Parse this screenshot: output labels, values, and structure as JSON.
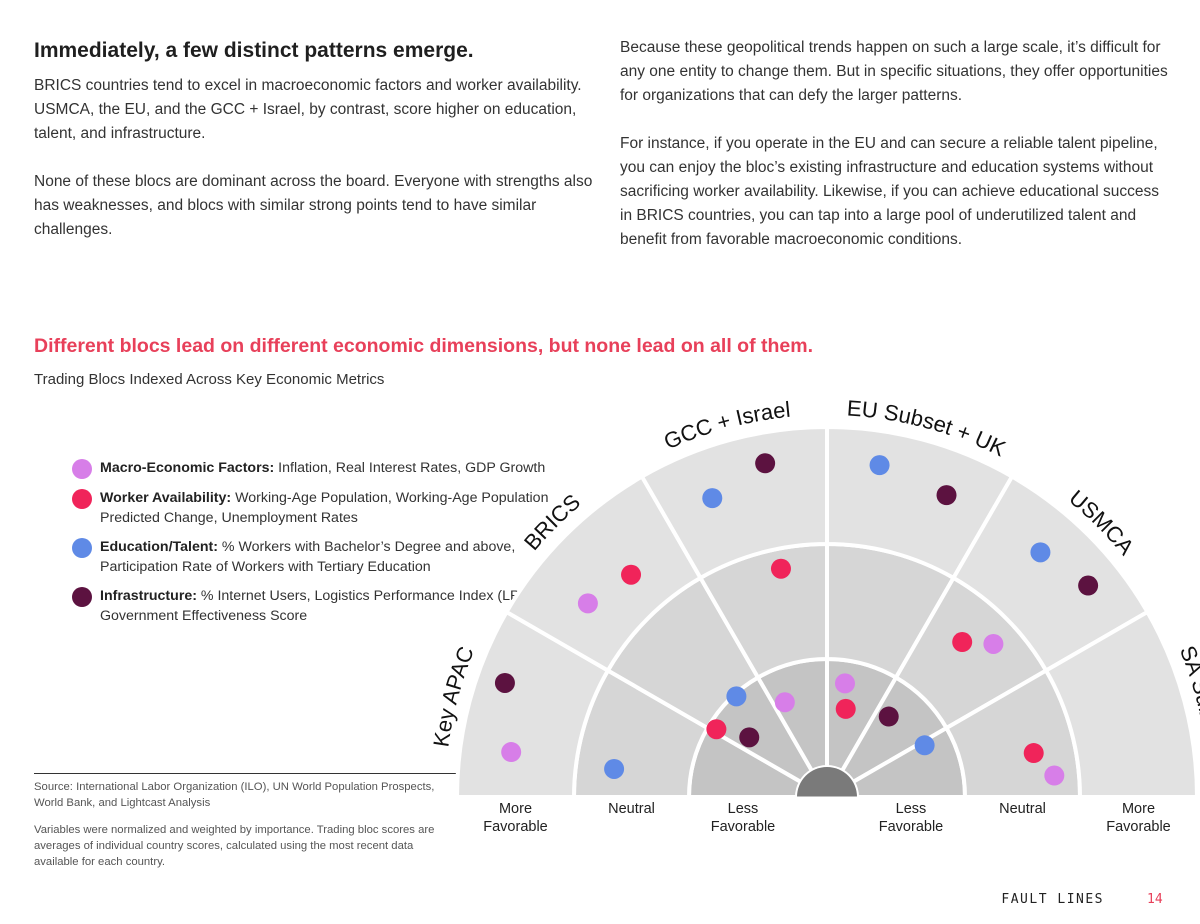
{
  "intro": {
    "heading": "Immediately, a few distinct patterns emerge.",
    "left_paragraphs": [
      "BRICS countries tend to excel in macroeconomic factors and worker availability. USMCA, the EU, and the GCC + Israel, by contrast, score higher on education, talent, and infrastructure.",
      "None of these blocs are dominant across the board. Everyone with strengths also has weaknesses, and blocs with similar strong points tend to have similar challenges."
    ],
    "right_paragraphs": [
      "Because these geopolitical trends happen on such a large scale, it’s difficult for any one entity to change them. But in specific situations, they offer opportunities for organizations that can defy the larger patterns.",
      "For instance, if you operate in the EU and can secure a reliable talent pipeline, you can enjoy the bloc’s existing infrastructure and education systems without sacrificing worker availability. Likewise, if you can achieve educational success in BRICS countries, you can tap into a large pool of underutilized talent and benefit from favorable macroeconomic conditions."
    ]
  },
  "chart_section": {
    "headline": "Different blocs lead on different economic dimensions, but none lead on all of them.",
    "subtitle": "Trading Blocs Indexed Across Key Economic Metrics"
  },
  "legend": [
    {
      "key": "Macro-Economic Factors:",
      "desc": " Inflation, Real Interest Rates, GDP Growth",
      "color": "#d77ee8"
    },
    {
      "key": "Worker Availability:",
      "desc": " Working-Age Population, Working-Age Population Predicted Change, Unemployment Rates",
      "color": "#f0245a"
    },
    {
      "key": "Education/Talent:",
      "desc": " % Workers with Bachelor’s Degree and above, Participation Rate of Workers with Tertiary Education",
      "color": "#5f8ae6"
    },
    {
      "key": "Infrastructure:",
      "desc": " % Internet Users, Logistics Performance Index (LPI), Government Effectiveness Score",
      "color": "#5c1240"
    }
  ],
  "notes": {
    "source": "Source: International Labor Organization (ILO), UN World Population Prospects, World Bank, and Lightcast Analysis",
    "method": "Variables were normalized and weighted by importance. Trading bloc scores are averages of individual country scores, calculated using the most recent data available for each country."
  },
  "chart_data": {
    "type": "radial-dot",
    "title": "Trading Blocs Indexed Across Key Economic Metrics",
    "blocs": [
      "Key APAC",
      "BRICS",
      "GCC + Israel",
      "EU Subset + UK",
      "USMCA",
      "SA Subset"
    ],
    "scale_levels": [
      "Less Favorable",
      "Neutral",
      "More Favorable"
    ],
    "axis_labels_left": [
      "More\nFavorable",
      "Neutral",
      "Less\nFavorable"
    ],
    "axis_labels_right": [
      "Less\nFavorable",
      "Neutral",
      "More\nFavorable"
    ],
    "axis_labels_left_lines": [
      [
        "More",
        "Favorable"
      ],
      [
        "Neutral"
      ],
      [
        "Less",
        "Favorable"
      ]
    ],
    "axis_labels_right_lines": [
      [
        "Less",
        "Favorable"
      ],
      [
        "Neutral"
      ],
      [
        "More",
        "Favorable"
      ]
    ],
    "value_range": [
      0,
      3
    ],
    "metrics": [
      "Macro-Economic Factors",
      "Worker Availability",
      "Education/Talent",
      "Infrastructure"
    ],
    "colors": {
      "Macro-Economic Factors": "#d77ee8",
      "Worker Availability": "#f0245a",
      "Education/Talent": "#5f8ae6",
      "Infrastructure": "#5c1240"
    },
    "points": [
      {
        "bloc": "Key APAC",
        "metric": "Macro-Economic Factors",
        "value": 2.55,
        "slot": 0.27
      },
      {
        "bloc": "Key APAC",
        "metric": "Infrastructure",
        "value": 2.75,
        "slot": 0.65
      },
      {
        "bloc": "Key APAC",
        "metric": "Education/Talent",
        "value": 1.63,
        "slot": 0.25
      },
      {
        "bloc": "BRICS",
        "metric": "Macro-Economic Factors",
        "value": 2.45,
        "slot": 0.3
      },
      {
        "bloc": "BRICS",
        "metric": "Worker Availability",
        "value": 2.35,
        "slot": 0.62
      },
      {
        "bloc": "BRICS",
        "metric": "Infrastructure",
        "value": 0.6,
        "slot": 0.25
      },
      {
        "bloc": "BRICS",
        "metric": "Education/Talent",
        "value": 0.93,
        "slot": 0.6
      },
      {
        "bloc": "BRICS",
        "metric": "Worker Availability",
        "value": 0.88,
        "slot": 0.05
      },
      {
        "bloc": "GCC + Israel",
        "metric": "Education/Talent",
        "value": 2.56,
        "slot": 0.3
      },
      {
        "bloc": "GCC + Israel",
        "metric": "Infrastructure",
        "value": 2.73,
        "slot": 0.65
      },
      {
        "bloc": "GCC + Israel",
        "metric": "Worker Availability",
        "value": 1.79,
        "slot": 0.62
      },
      {
        "bloc": "GCC + Israel",
        "metric": "Macro-Economic Factors",
        "value": 0.65,
        "slot": 0.2
      },
      {
        "bloc": "EU Subset + UK",
        "metric": "Education/Talent",
        "value": 2.7,
        "slot": 0.3
      },
      {
        "bloc": "EU Subset + UK",
        "metric": "Infrastructure",
        "value": 2.6,
        "slot": 0.72
      },
      {
        "bloc": "EU Subset + UK",
        "metric": "Macro-Economic Factors",
        "value": 0.75,
        "slot": 0.3
      },
      {
        "bloc": "EU Subset + UK",
        "metric": "Worker Availability",
        "value": 0.53,
        "slot": 0.4
      },
      {
        "bloc": "USMCA",
        "metric": "Education/Talent",
        "value": 2.6,
        "slot": 0.37
      },
      {
        "bloc": "USMCA",
        "metric": "Infrastructure",
        "value": 2.7,
        "slot": 0.7
      },
      {
        "bloc": "USMCA",
        "metric": "Macro-Economic Factors",
        "value": 1.73,
        "slot": 0.58
      },
      {
        "bloc": "USMCA",
        "metric": "Worker Availability",
        "value": 1.55,
        "slot": 0.37
      },
      {
        "bloc": "USMCA",
        "metric": "Infrastructure",
        "value": 0.63,
        "slot": 0.25
      },
      {
        "bloc": "SA Subset",
        "metric": "Macro-Economic Factors",
        "value": 1.75,
        "slot": 0.82
      },
      {
        "bloc": "SA Subset",
        "metric": "Worker Availability",
        "value": 1.6,
        "slot": 0.6
      },
      {
        "bloc": "SA Subset",
        "metric": "Education/Talent",
        "value": 0.71,
        "slot": 0.07
      }
    ]
  },
  "footer": {
    "brand": "FAULT LINES",
    "page": "14"
  }
}
